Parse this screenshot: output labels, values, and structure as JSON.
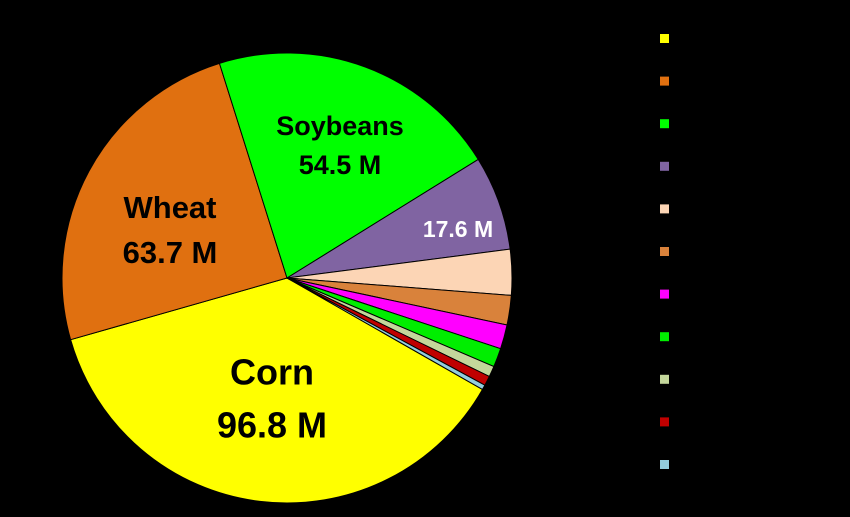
{
  "chart_data": {
    "type": "pie",
    "categories": [
      "Corn",
      "Wheat",
      "Soybeans",
      null,
      null,
      null,
      null,
      null,
      null,
      null,
      null
    ],
    "values": [
      96.8,
      63.7,
      54.5,
      17.6,
      8.5,
      5.5,
      4.5,
      3.5,
      2.0,
      1.8,
      0.9
    ],
    "value_labels": [
      "96.8 M",
      "63.7 M",
      "54.5 M",
      "17.6 M",
      null,
      null,
      null,
      null,
      null,
      null,
      null
    ],
    "colors": [
      "#ffff00",
      "#e07010",
      "#00ff00",
      "#8064a2",
      "#fcd5b5",
      "#d9823b",
      "#ff00ff",
      "#00ee00",
      "#c4d79b",
      "#c00000",
      "#93cddd"
    ]
  }
}
